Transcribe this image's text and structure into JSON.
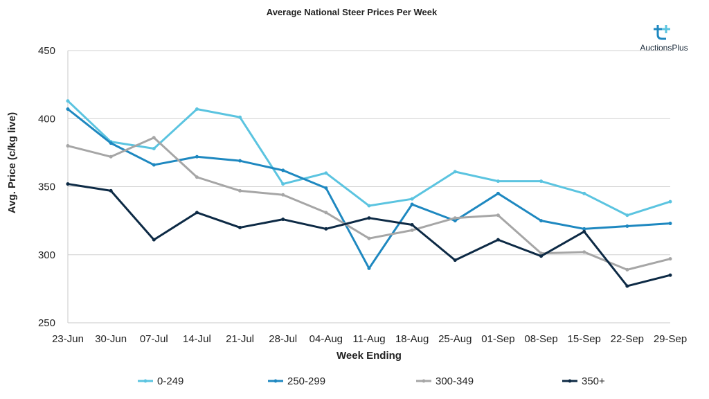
{
  "chart_data": {
    "type": "line",
    "title": "Average National Steer Prices Per Week",
    "xlabel": "Week Ending",
    "ylabel": "Avg. Price (c/kg live)",
    "ylim": [
      250,
      450
    ],
    "yticks": [
      250,
      300,
      350,
      400,
      450
    ],
    "grid": true,
    "legend_position": "bottom",
    "x": [
      "23-Jun",
      "30-Jun",
      "07-Jul",
      "14-Jul",
      "21-Jul",
      "28-Jul",
      "04-Aug",
      "11-Aug",
      "18-Aug",
      "25-Aug",
      "01-Sep",
      "08-Sep",
      "15-Sep",
      "22-Sep",
      "29-Sep"
    ],
    "series": [
      {
        "name": "0-249",
        "color": "#5bc4e0",
        "values": [
          413,
          383,
          378,
          407,
          401,
          352,
          360,
          336,
          341,
          361,
          354,
          354,
          345,
          329,
          339
        ]
      },
      {
        "name": "250-299",
        "color": "#1e88c0",
        "values": [
          407,
          382,
          366,
          372,
          369,
          362,
          349,
          290,
          337,
          325,
          345,
          325,
          319,
          321,
          323
        ]
      },
      {
        "name": "300-349",
        "color": "#a6a6a6",
        "values": [
          380,
          372,
          386,
          357,
          347,
          344,
          331,
          312,
          318,
          327,
          329,
          301,
          302,
          289,
          297
        ]
      },
      {
        "name": "350+",
        "color": "#0d2a45",
        "values": [
          352,
          347,
          311,
          331,
          320,
          326,
          319,
          327,
          322,
          296,
          311,
          299,
          317,
          277,
          285
        ]
      }
    ]
  },
  "logo": {
    "name": "AuctionsPlus",
    "icon": "auctionsplus-logo-icon",
    "color": "#1e88c0"
  }
}
